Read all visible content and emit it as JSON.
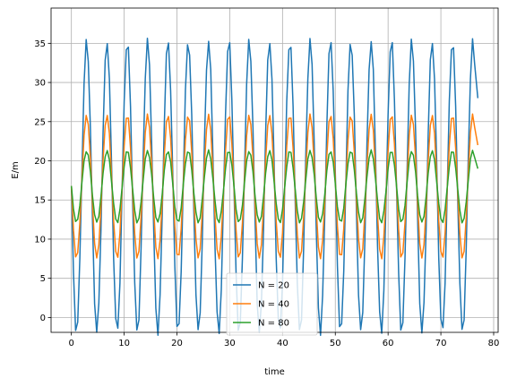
{
  "chart_data": {
    "type": "line",
    "title": "",
    "xlabel": "time",
    "ylabel": "E/m",
    "xlim": [
      -3.85,
      80.85
    ],
    "ylim": [
      -1.9,
      39.5
    ],
    "xticks": [
      0,
      10,
      20,
      30,
      40,
      50,
      60,
      70,
      80
    ],
    "yticks": [
      0,
      5,
      10,
      15,
      20,
      25,
      30,
      35
    ],
    "grid": true,
    "legend_position": "lower center",
    "x_range": [
      0,
      77
    ],
    "period": 3.85,
    "mean": 16.7,
    "series": [
      {
        "name": "N = 20",
        "color": "#1f77b4",
        "amplitude": 18.7,
        "min": -0.1,
        "max": 37.5,
        "start": 16.7,
        "end": 28.0
      },
      {
        "name": "N = 40",
        "color": "#ff7f0e",
        "amplitude": 9.2,
        "min": 8.0,
        "max": 26.5,
        "start": 16.7,
        "end": 22.0
      },
      {
        "name": "N = 80",
        "color": "#2ca02c",
        "amplitude": 4.6,
        "min": 12.2,
        "max": 21.5,
        "start": 16.7,
        "end": 19.0
      }
    ]
  }
}
